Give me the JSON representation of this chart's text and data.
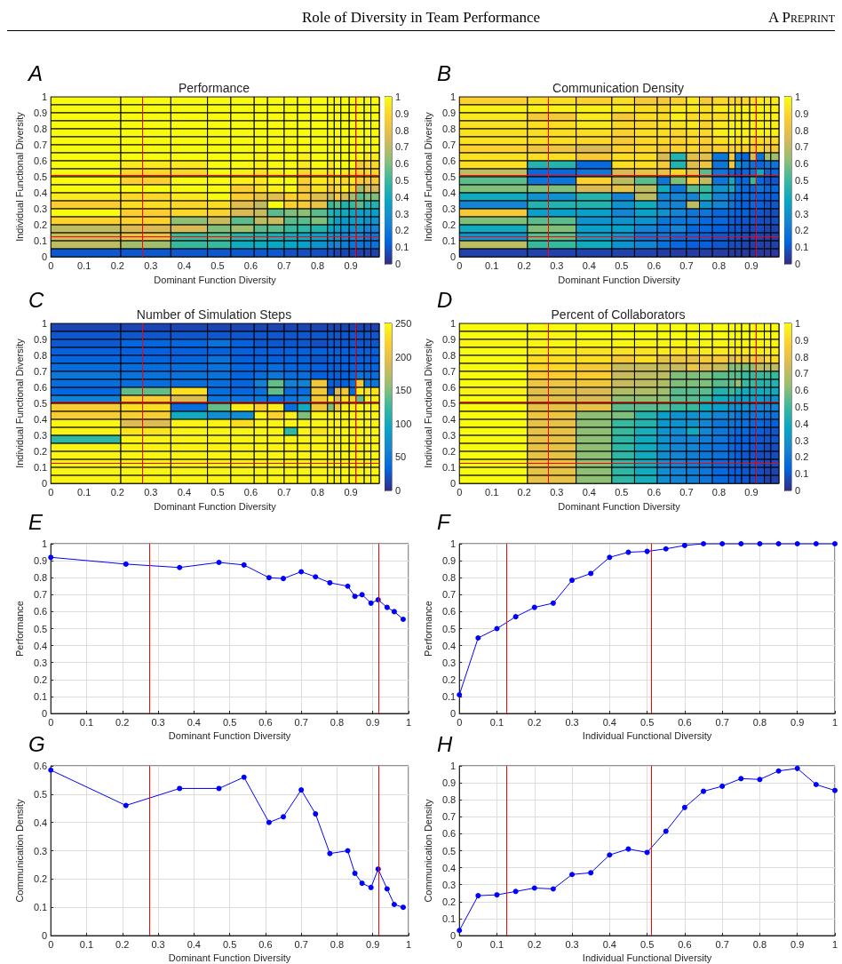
{
  "chart_data": [
    {
      "type": "heatmap",
      "title": "Performance",
      "xlabel": "Dominant Function Diversity",
      "ylabel": "Individual Functional Diversity",
      "annotations": [
        "Role of Diversity in Team Performance",
        "A Preprint",
        "A"
      ],
      "x": [
        0.105,
        0.285,
        0.415,
        0.505,
        0.575,
        0.63,
        0.675,
        0.72,
        0.76,
        0.805,
        0.84,
        0.86,
        0.8825,
        0.905,
        0.9275,
        0.95,
        0.9725
      ],
      "xlim": [
        0,
        0.985
      ],
      "xticks": [
        0,
        0.1,
        0.2,
        0.3,
        0.4,
        0.5,
        0.6,
        0.7,
        0.8,
        0.9
      ],
      "ylim": [
        0,
        1
      ],
      "yticks": [
        0,
        0.1,
        0.2,
        0.3,
        0.4,
        0.5,
        0.6,
        0.7,
        0.8,
        0.9,
        1
      ],
      "clim": [
        0,
        1
      ],
      "cticks": [
        0,
        0.1,
        0.2,
        0.3,
        0.4,
        0.5,
        0.6,
        0.7,
        0.8,
        0.9,
        1
      ],
      "ref_lines": [
        {
          "axis": "x",
          "value": 0.275,
          "color": "#ff0000"
        },
        {
          "axis": "x",
          "value": 0.915,
          "color": "#ff0000"
        },
        {
          "axis": "y",
          "value": 0.125,
          "color": "#ff0000"
        },
        {
          "axis": "y",
          "value": 0.51,
          "color": "#ff0000"
        }
      ],
      "cells": [
        [
          1,
          1,
          1,
          1,
          1,
          1,
          1,
          1,
          1,
          1,
          1,
          1,
          1,
          1,
          1,
          1,
          1
        ],
        [
          1,
          1,
          1,
          1,
          1,
          1,
          1,
          1,
          1,
          1,
          1,
          1,
          1,
          1,
          1,
          1,
          1
        ],
        [
          1,
          1,
          1,
          1,
          1,
          1,
          1,
          1,
          1,
          1,
          1,
          1,
          1,
          1,
          1,
          1,
          1
        ],
        [
          1,
          1,
          1,
          1,
          1,
          1,
          1,
          1,
          1,
          1,
          1,
          1,
          1,
          1,
          1,
          1,
          1
        ],
        [
          1,
          1,
          1,
          1,
          1,
          1,
          1,
          1,
          1,
          1,
          1,
          1,
          1,
          1,
          1,
          1,
          1
        ],
        [
          1,
          1,
          1,
          1,
          1,
          1,
          1,
          1,
          1,
          1,
          1,
          1,
          1,
          1,
          1,
          1,
          1
        ],
        [
          1,
          1,
          1,
          1,
          1,
          1,
          1,
          1,
          1,
          1,
          1,
          1,
          1,
          1,
          1,
          1,
          1
        ],
        [
          1,
          1,
          1,
          1,
          1,
          0.97,
          1,
          1,
          0.97,
          1,
          1,
          1,
          1,
          1,
          1,
          0.95,
          0.95
        ],
        [
          1,
          0.95,
          0.95,
          1,
          1,
          0.97,
          1,
          1,
          0.95,
          1,
          0.95,
          1,
          1,
          1,
          0.85,
          0.9,
          0.9
        ],
        [
          1,
          0.9,
          0.9,
          1,
          0.97,
          0.93,
          0.97,
          1,
          0.9,
          0.95,
          0.92,
          1,
          0.95,
          0.93,
          0.88,
          0.9,
          0.9
        ],
        [
          1,
          0.88,
          1,
          1,
          0.97,
          0.95,
          1,
          1,
          0.88,
          0.95,
          0.92,
          0.95,
          0.9,
          0.95,
          0.85,
          0.85,
          0.85
        ],
        [
          1,
          1,
          1,
          1,
          0.87,
          0.93,
          0.97,
          1,
          0.85,
          0.93,
          0.85,
          0.9,
          0.95,
          0.88,
          0.65,
          0.75,
          0.75
        ],
        [
          0.95,
          0.9,
          0.95,
          1,
          0.87,
          0.8,
          0.78,
          0.88,
          0.85,
          0.78,
          0.72,
          0.85,
          0.75,
          0.65,
          0.55,
          0.6,
          0.6
        ],
        [
          0.87,
          0.92,
          0.9,
          0.92,
          0.77,
          0.7,
          1,
          0.88,
          0.85,
          0.8,
          0.5,
          0.55,
          0.45,
          0.5,
          0.55,
          0.45,
          0.45
        ],
        [
          1,
          0.87,
          0.9,
          0.88,
          0.75,
          0.72,
          0.55,
          0.6,
          0.62,
          0.55,
          0.45,
          0.4,
          0.4,
          0.38,
          0.35,
          0.35,
          0.35
        ],
        [
          0.88,
          0.88,
          0.62,
          0.72,
          0.55,
          0.7,
          0.72,
          0.55,
          0.55,
          0.6,
          0.45,
          0.35,
          0.32,
          0.35,
          0.35,
          0.3,
          0.3
        ],
        [
          0.7,
          0.75,
          0.75,
          0.6,
          0.65,
          0.55,
          0.55,
          0.5,
          0.48,
          0.45,
          0.38,
          0.35,
          0.3,
          0.3,
          0.3,
          0.25,
          0.25
        ],
        [
          0.72,
          0.8,
          0.5,
          0.55,
          0.45,
          0.45,
          0.42,
          0.4,
          0.38,
          0.35,
          0.3,
          0.3,
          0.25,
          0.25,
          0.25,
          0.2,
          0.2
        ],
        [
          0.7,
          0.65,
          0.5,
          0.5,
          0.4,
          0.4,
          0.38,
          0.38,
          0.35,
          0.3,
          0.25,
          0.25,
          0.22,
          0.2,
          0.2,
          0.18,
          0.18
        ],
        [
          0.1,
          0.1,
          0.1,
          0.1,
          0.1,
          0.1,
          0.1,
          0.08,
          0.08,
          0.08,
          0.08,
          0.06,
          0.06,
          0.06,
          0.05,
          0.05,
          0.05
        ]
      ]
    },
    {
      "type": "heatmap",
      "title": "Communication Density",
      "xlabel": "Dominant Function Diversity",
      "ylabel": "Individual Functional Diversity",
      "annotations": [
        "B"
      ],
      "x": [
        0.105,
        0.285,
        0.415,
        0.505,
        0.575,
        0.63,
        0.675,
        0.72,
        0.76,
        0.805,
        0.84,
        0.86,
        0.8825,
        0.905,
        0.9275,
        0.95,
        0.9725
      ],
      "xlim": [
        0,
        0.985
      ],
      "xticks": [
        0,
        0.1,
        0.2,
        0.3,
        0.4,
        0.5,
        0.6,
        0.7,
        0.8,
        0.9
      ],
      "ylim": [
        0,
        1
      ],
      "yticks": [
        0,
        0.1,
        0.2,
        0.3,
        0.4,
        0.5,
        0.6,
        0.7,
        0.8,
        0.9,
        1
      ],
      "clim": [
        0,
        1
      ],
      "cticks": [
        0,
        0.1,
        0.2,
        0.3,
        0.4,
        0.5,
        0.6,
        0.7,
        0.8,
        0.9,
        1
      ],
      "ref_lines": [
        {
          "axis": "x",
          "value": 0.275,
          "color": "#ff0000"
        },
        {
          "axis": "x",
          "value": 0.915,
          "color": "#ff0000"
        },
        {
          "axis": "y",
          "value": 0.125,
          "color": "#ff0000"
        },
        {
          "axis": "y",
          "value": 0.51,
          "color": "#ff0000"
        }
      ],
      "cells": [
        [
          0.88,
          0.92,
          0.88,
          0.92,
          0.85,
          0.85,
          0.88,
          0.95,
          0.85,
          0.9,
          0.9,
          0.88,
          0.9,
          0.92,
          0.95,
          0.95,
          0.95
        ],
        [
          0.97,
          0.97,
          0.97,
          0.95,
          0.92,
          0.9,
          0.95,
          0.95,
          0.92,
          0.95,
          0.95,
          0.97,
          0.97,
          0.97,
          0.97,
          0.97,
          0.97
        ],
        [
          0.95,
          0.85,
          0.95,
          0.85,
          0.92,
          0.92,
          0.97,
          0.92,
          0.92,
          0.92,
          0.95,
          0.95,
          0.97,
          0.97,
          0.97,
          0.97,
          0.97
        ],
        [
          0.93,
          0.92,
          0.95,
          0.9,
          0.9,
          0.92,
          0.93,
          0.95,
          0.88,
          0.95,
          0.97,
          0.97,
          0.97,
          0.97,
          0.97,
          0.97,
          0.97
        ],
        [
          0.93,
          0.92,
          0.92,
          0.88,
          0.92,
          0.92,
          0.9,
          0.92,
          0.9,
          0.97,
          1,
          0.97,
          0.97,
          0.97,
          0.97,
          0.97,
          0.97
        ],
        [
          0.93,
          0.92,
          0.9,
          0.85,
          0.9,
          0.9,
          0.88,
          0.9,
          0.87,
          0.92,
          0.95,
          0.92,
          0.95,
          0.9,
          0.9,
          0.9,
          0.9
        ],
        [
          0.88,
          0.82,
          0.75,
          0.88,
          0.9,
          0.85,
          0.88,
          0.9,
          0.85,
          0.87,
          0.88,
          0.88,
          0.88,
          0.85,
          0.88,
          0.85,
          0.85
        ],
        [
          0.93,
          0.92,
          0.85,
          0.92,
          0.92,
          0.75,
          0.45,
          0.78,
          0.78,
          0.2,
          0.85,
          0.2,
          0.15,
          0.75,
          0.18,
          0.65,
          0.65
        ],
        [
          0.92,
          0.45,
          0.15,
          0.92,
          0.92,
          0.85,
          0.45,
          0.78,
          0.82,
          0.2,
          0.85,
          0.3,
          0.2,
          0.18,
          0.15,
          0.2,
          0.2
        ],
        [
          0.7,
          0.15,
          0.2,
          0.75,
          0.8,
          0.8,
          0.9,
          0.8,
          0.55,
          0.2,
          0.15,
          0.1,
          0.15,
          0.2,
          0.4,
          0.15,
          0.15
        ],
        [
          0.55,
          0.2,
          0.88,
          0.7,
          0.55,
          0.2,
          0.6,
          0.85,
          0.7,
          0.2,
          0.4,
          0.15,
          0.15,
          0.5,
          0.15,
          0.1,
          0.1
        ],
        [
          0.6,
          0.6,
          0.75,
          0.8,
          0.7,
          0.4,
          0.2,
          0.55,
          0.5,
          0.3,
          0.4,
          0.2,
          0.15,
          0.15,
          0.2,
          0.15,
          0.15
        ],
        [
          0.4,
          0.3,
          0.45,
          0.25,
          0.7,
          0.25,
          0.25,
          0.25,
          0.45,
          0.25,
          0.2,
          0.15,
          0.15,
          0.15,
          0.12,
          0.12,
          0.12
        ],
        [
          0.25,
          0.45,
          0.45,
          0.3,
          0.4,
          0.25,
          0.25,
          0.7,
          0.3,
          0.25,
          0.2,
          0.15,
          0.12,
          0.15,
          0.12,
          0.1,
          0.1
        ],
        [
          0.85,
          0.35,
          0.35,
          0.25,
          0.35,
          0.3,
          0.25,
          0.2,
          0.2,
          0.15,
          0.15,
          0.12,
          0.12,
          0.1,
          0.1,
          0.08,
          0.08
        ],
        [
          0.6,
          0.55,
          0.3,
          0.3,
          0.3,
          0.2,
          0.2,
          0.2,
          0.15,
          0.15,
          0.12,
          0.1,
          0.1,
          0.1,
          0.08,
          0.08,
          0.08
        ],
        [
          0.4,
          0.6,
          0.35,
          0.35,
          0.25,
          0.2,
          0.25,
          0.15,
          0.15,
          0.12,
          0.1,
          0.1,
          0.08,
          0.08,
          0.08,
          0.06,
          0.06
        ],
        [
          0.3,
          0.55,
          0.35,
          0.3,
          0.2,
          0.2,
          0.15,
          0.15,
          0.12,
          0.1,
          0.1,
          0.08,
          0.08,
          0.06,
          0.06,
          0.05,
          0.05
        ],
        [
          0.7,
          0.5,
          0.4,
          0.3,
          0.25,
          0.18,
          0.15,
          0.12,
          0.12,
          0.1,
          0.08,
          0.08,
          0.06,
          0.05,
          0.05,
          0.05,
          0.05
        ],
        [
          0.05,
          0.05,
          0.05,
          0.05,
          0.05,
          0.04,
          0.04,
          0.04,
          0.04,
          0.04,
          0.03,
          0.03,
          0.03,
          0.03,
          0.03,
          0.03,
          0.03
        ]
      ]
    },
    {
      "type": "heatmap",
      "title": "Number of Simulation Steps",
      "xlabel": "Dominant Function Diversity",
      "ylabel": "Individual Functional Diversity",
      "annotations": [
        "C"
      ],
      "x": [
        0.105,
        0.285,
        0.415,
        0.505,
        0.575,
        0.63,
        0.675,
        0.72,
        0.76,
        0.805,
        0.84,
        0.86,
        0.8825,
        0.905,
        0.9275,
        0.95,
        0.9725
      ],
      "xlim": [
        0,
        0.985
      ],
      "xticks": [
        0,
        0.1,
        0.2,
        0.3,
        0.4,
        0.5,
        0.6,
        0.7,
        0.8,
        0.9
      ],
      "ylim": [
        0,
        1
      ],
      "yticks": [
        0,
        0.1,
        0.2,
        0.3,
        0.4,
        0.5,
        0.6,
        0.7,
        0.8,
        0.9,
        1
      ],
      "clim": [
        0,
        250
      ],
      "cticks": [
        0,
        50,
        100,
        150,
        200,
        250
      ],
      "ref_lines": [
        {
          "axis": "x",
          "value": 0.275,
          "color": "#ff0000"
        },
        {
          "axis": "x",
          "value": 0.915,
          "color": "#ff0000"
        },
        {
          "axis": "y",
          "value": 0.125,
          "color": "#ff0000"
        },
        {
          "axis": "y",
          "value": 0.51,
          "color": "#ff0000"
        }
      ],
      "cells": [
        [
          15,
          15,
          15,
          15,
          15,
          15,
          15,
          15,
          15,
          15,
          15,
          15,
          15,
          15,
          15,
          15,
          15
        ],
        [
          25,
          25,
          25,
          25,
          25,
          25,
          25,
          25,
          25,
          25,
          25,
          25,
          25,
          25,
          25,
          25,
          25
        ],
        [
          25,
          35,
          35,
          45,
          30,
          25,
          25,
          25,
          25,
          20,
          25,
          25,
          25,
          25,
          25,
          25,
          25
        ],
        [
          30,
          30,
          30,
          30,
          30,
          30,
          30,
          30,
          30,
          30,
          30,
          30,
          30,
          30,
          30,
          30,
          30
        ],
        [
          35,
          35,
          35,
          45,
          30,
          30,
          30,
          30,
          30,
          25,
          30,
          30,
          30,
          30,
          30,
          30,
          30
        ],
        [
          40,
          40,
          40,
          45,
          35,
          35,
          40,
          35,
          35,
          30,
          30,
          30,
          30,
          30,
          35,
          35,
          35
        ],
        [
          50,
          45,
          45,
          45,
          35,
          40,
          50,
          40,
          40,
          30,
          30,
          30,
          30,
          35,
          50,
          40,
          40
        ],
        [
          40,
          40,
          40,
          40,
          35,
          60,
          140,
          60,
          60,
          210,
          30,
          30,
          30,
          45,
          210,
          50,
          50
        ],
        [
          35,
          140,
          230,
          40,
          35,
          45,
          140,
          40,
          40,
          210,
          25,
          190,
          210,
          40,
          240,
          235,
          235
        ],
        [
          60,
          215,
          190,
          50,
          50,
          50,
          40,
          50,
          60,
          210,
          240,
          190,
          230,
          215,
          140,
          240,
          240
        ],
        [
          215,
          230,
          40,
          140,
          240,
          220,
          240,
          40,
          100,
          210,
          150,
          210,
          240,
          240,
          250,
          245,
          245
        ],
        [
          215,
          215,
          100,
          70,
          70,
          245,
          220,
          240,
          150,
          245,
          245,
          245,
          245,
          245,
          245,
          245,
          245
        ],
        [
          245,
          190,
          245,
          245,
          230,
          245,
          245,
          245,
          245,
          245,
          245,
          245,
          245,
          245,
          245,
          245,
          245
        ],
        [
          245,
          235,
          245,
          245,
          245,
          245,
          245,
          120,
          245,
          235,
          245,
          245,
          245,
          245,
          245,
          245,
          245
        ],
        [
          120,
          245,
          245,
          245,
          245,
          245,
          245,
          245,
          245,
          245,
          245,
          245,
          245,
          245,
          245,
          245,
          245
        ],
        [
          245,
          245,
          245,
          245,
          245,
          245,
          245,
          245,
          245,
          245,
          245,
          245,
          245,
          245,
          245,
          245,
          245
        ],
        [
          245,
          245,
          245,
          245,
          245,
          245,
          245,
          245,
          245,
          245,
          245,
          245,
          245,
          245,
          245,
          245,
          245
        ],
        [
          245,
          245,
          245,
          245,
          245,
          245,
          245,
          245,
          245,
          245,
          245,
          245,
          245,
          245,
          245,
          245,
          245
        ],
        [
          245,
          245,
          245,
          245,
          245,
          245,
          245,
          245,
          245,
          245,
          245,
          245,
          245,
          245,
          245,
          245,
          245
        ],
        [
          245,
          245,
          245,
          245,
          245,
          245,
          245,
          245,
          245,
          245,
          245,
          245,
          245,
          245,
          245,
          245,
          245
        ]
      ]
    },
    {
      "type": "heatmap",
      "title": "Percent of Collaborators",
      "xlabel": "Dominant Function Diversity",
      "ylabel": "Individual Functional Diversity",
      "annotations": [
        "D"
      ],
      "x": [
        0.105,
        0.285,
        0.415,
        0.505,
        0.575,
        0.63,
        0.675,
        0.72,
        0.76,
        0.805,
        0.84,
        0.86,
        0.8825,
        0.905,
        0.9275,
        0.95,
        0.9725
      ],
      "xlim": [
        0,
        0.985
      ],
      "xticks": [
        0,
        0.1,
        0.2,
        0.3,
        0.4,
        0.5,
        0.6,
        0.7,
        0.8,
        0.9
      ],
      "ylim": [
        0,
        1
      ],
      "yticks": [
        0,
        0.1,
        0.2,
        0.3,
        0.4,
        0.5,
        0.6,
        0.7,
        0.8,
        0.9,
        1
      ],
      "clim": [
        0,
        1
      ],
      "cticks": [
        0,
        0.1,
        0.2,
        0.3,
        0.4,
        0.5,
        0.6,
        0.7,
        0.8,
        0.9,
        1
      ],
      "ref_lines": [
        {
          "axis": "x",
          "value": 0.275,
          "color": "#ff0000"
        },
        {
          "axis": "x",
          "value": 0.915,
          "color": "#ff0000"
        },
        {
          "axis": "y",
          "value": 0.125,
          "color": "#ff0000"
        },
        {
          "axis": "y",
          "value": 0.51,
          "color": "#ff0000"
        }
      ],
      "cells": [
        [
          1,
          1,
          1,
          1,
          1,
          1,
          1,
          1,
          1,
          1,
          1,
          1,
          1,
          1,
          1,
          1,
          1
        ],
        [
          1,
          0.98,
          1,
          1,
          1,
          1,
          1,
          1,
          1,
          1,
          1,
          1,
          1,
          1,
          1,
          1,
          1
        ],
        [
          0.98,
          0.98,
          0.98,
          0.98,
          0.98,
          0.98,
          0.98,
          0.98,
          0.98,
          0.98,
          0.98,
          0.98,
          0.98,
          0.98,
          0.98,
          0.98,
          0.98
        ],
        [
          1,
          0.95,
          0.93,
          0.93,
          0.93,
          0.95,
          0.93,
          0.93,
          0.95,
          0.95,
          0.95,
          0.95,
          0.95,
          0.95,
          0.95,
          0.95,
          0.95
        ],
        [
          1,
          0.92,
          0.92,
          0.85,
          0.92,
          0.8,
          0.82,
          0.8,
          0.85,
          0.85,
          0.78,
          0.85,
          0.82,
          0.85,
          0.8,
          0.9,
          0.9
        ],
        [
          1,
          0.9,
          0.85,
          0.72,
          0.72,
          0.72,
          0.72,
          0.82,
          0.75,
          0.72,
          0.6,
          0.62,
          0.6,
          0.62,
          0.7,
          0.7,
          0.7
        ],
        [
          1,
          0.87,
          0.87,
          0.72,
          0.7,
          0.7,
          0.6,
          0.6,
          0.6,
          0.55,
          0.55,
          0.55,
          0.5,
          0.5,
          0.5,
          0.5,
          0.5
        ],
        [
          1,
          0.82,
          0.83,
          0.72,
          0.7,
          0.68,
          0.6,
          0.6,
          0.6,
          0.55,
          0.55,
          0.65,
          0.5,
          0.5,
          0.45,
          0.45,
          0.45
        ],
        [
          0.97,
          0.78,
          0.75,
          0.68,
          0.68,
          0.65,
          0.55,
          0.55,
          0.55,
          0.45,
          0.5,
          0.45,
          0.4,
          0.4,
          0.4,
          0.4,
          0.4
        ],
        [
          1,
          0.78,
          0.75,
          0.62,
          0.62,
          0.62,
          0.55,
          0.55,
          0.5,
          0.4,
          0.4,
          0.35,
          0.35,
          0.35,
          0.35,
          0.3,
          0.3
        ],
        [
          1,
          0.8,
          0.8,
          0.55,
          0.55,
          0.55,
          0.5,
          0.5,
          0.4,
          0.35,
          0.3,
          0.3,
          0.3,
          0.25,
          0.25,
          0.25,
          0.25
        ],
        [
          1,
          0.82,
          0.62,
          0.6,
          0.45,
          0.35,
          0.3,
          0.3,
          0.3,
          0.25,
          0.25,
          0.2,
          0.2,
          0.2,
          0.2,
          0.18,
          0.18
        ],
        [
          1,
          0.8,
          0.62,
          0.5,
          0.45,
          0.32,
          0.3,
          0.3,
          0.25,
          0.2,
          0.2,
          0.18,
          0.18,
          0.15,
          0.15,
          0.12,
          0.12
        ],
        [
          1,
          0.8,
          0.62,
          0.5,
          0.42,
          0.3,
          0.28,
          0.4,
          0.25,
          0.2,
          0.18,
          0.15,
          0.15,
          0.12,
          0.12,
          0.1,
          0.1
        ],
        [
          1,
          0.8,
          0.62,
          0.48,
          0.4,
          0.3,
          0.25,
          0.25,
          0.22,
          0.2,
          0.15,
          0.12,
          0.12,
          0.12,
          0.1,
          0.1,
          0.1
        ],
        [
          1,
          0.8,
          0.62,
          0.48,
          0.4,
          0.3,
          0.25,
          0.25,
          0.2,
          0.18,
          0.15,
          0.12,
          0.12,
          0.1,
          0.1,
          0.08,
          0.08
        ],
        [
          1,
          0.8,
          0.62,
          0.48,
          0.4,
          0.28,
          0.25,
          0.22,
          0.2,
          0.18,
          0.15,
          0.12,
          0.1,
          0.1,
          0.08,
          0.08,
          0.08
        ],
        [
          1,
          0.8,
          0.62,
          0.48,
          0.4,
          0.28,
          0.25,
          0.22,
          0.2,
          0.15,
          0.15,
          0.12,
          0.1,
          0.1,
          0.08,
          0.08,
          0.08
        ],
        [
          1,
          0.8,
          0.62,
          0.48,
          0.4,
          0.28,
          0.25,
          0.22,
          0.2,
          0.15,
          0.12,
          0.12,
          0.1,
          0.1,
          0.08,
          0.06,
          0.06
        ],
        [
          1,
          0.8,
          0.62,
          0.48,
          0.42,
          0.28,
          0.25,
          0.22,
          0.2,
          0.15,
          0.12,
          0.1,
          0.1,
          0.08,
          0.08,
          0.05,
          0.05
        ]
      ]
    },
    {
      "type": "line",
      "xlabel": "Dominant Function Diversity",
      "ylabel": "Performance",
      "annotations": [
        "E"
      ],
      "grid": true,
      "marker": "circle",
      "xlim": [
        0,
        1
      ],
      "xticks": [
        0,
        0.1,
        0.2,
        0.3,
        0.4,
        0.5,
        0.6,
        0.7,
        0.8,
        0.9,
        1
      ],
      "ylim": [
        0,
        1
      ],
      "yticks": [
        0,
        0.1,
        0.2,
        0.3,
        0.4,
        0.5,
        0.6,
        0.7,
        0.8,
        0.9,
        1
      ],
      "ref_lines": [
        {
          "axis": "x",
          "value": 0.275,
          "color": "#ff0000"
        },
        {
          "axis": "x",
          "value": 0.915,
          "color": "#ff0000"
        }
      ],
      "series": [
        {
          "color": "#0000ff",
          "x": [
            0,
            0.21,
            0.36,
            0.47,
            0.54,
            0.61,
            0.65,
            0.7,
            0.74,
            0.78,
            0.83,
            0.85,
            0.87,
            0.895,
            0.915,
            0.94,
            0.96,
            0.985
          ],
          "values": [
            0.92,
            0.88,
            0.86,
            0.89,
            0.875,
            0.8,
            0.795,
            0.835,
            0.805,
            0.77,
            0.75,
            0.69,
            0.7,
            0.65,
            0.67,
            0.625,
            0.6,
            0.555
          ]
        }
      ]
    },
    {
      "type": "line",
      "xlabel": "Individual Functional Diversity",
      "ylabel": "Performance",
      "annotations": [
        "F"
      ],
      "grid": true,
      "marker": "circle",
      "xlim": [
        0,
        1
      ],
      "xticks": [
        0,
        0.1,
        0.2,
        0.3,
        0.4,
        0.5,
        0.6,
        0.7,
        0.8,
        0.9,
        1
      ],
      "ylim": [
        0,
        1
      ],
      "yticks": [
        0,
        0.1,
        0.2,
        0.3,
        0.4,
        0.5,
        0.6,
        0.7,
        0.8,
        0.9,
        1
      ],
      "ref_lines": [
        {
          "axis": "x",
          "value": 0.125,
          "color": "#ff0000"
        },
        {
          "axis": "x",
          "value": 0.51,
          "color": "#ff0000"
        }
      ],
      "series": [
        {
          "color": "#0000ff",
          "x": [
            0,
            0.05,
            0.1,
            0.15,
            0.2,
            0.25,
            0.3,
            0.35,
            0.4,
            0.45,
            0.5,
            0.55,
            0.6,
            0.65,
            0.7,
            0.75,
            0.8,
            0.85,
            0.9,
            0.95,
            1
          ],
          "values": [
            0.11,
            0.445,
            0.5,
            0.57,
            0.625,
            0.65,
            0.785,
            0.825,
            0.92,
            0.95,
            0.955,
            0.97,
            0.99,
            1,
            1,
            1,
            1,
            1,
            1,
            1,
            1
          ]
        }
      ]
    },
    {
      "type": "line",
      "xlabel": "Dominant Function Diversity",
      "ylabel": "Communication Density",
      "annotations": [
        "G"
      ],
      "grid": true,
      "marker": "circle",
      "xlim": [
        0,
        1
      ],
      "xticks": [
        0,
        0.1,
        0.2,
        0.3,
        0.4,
        0.5,
        0.6,
        0.7,
        0.8,
        0.9,
        1
      ],
      "ylim": [
        0,
        0.6
      ],
      "yticks": [
        0,
        0.1,
        0.2,
        0.3,
        0.4,
        0.5,
        0.6
      ],
      "ref_lines": [
        {
          "axis": "x",
          "value": 0.275,
          "color": "#ff0000"
        },
        {
          "axis": "x",
          "value": 0.915,
          "color": "#ff0000"
        }
      ],
      "series": [
        {
          "color": "#0000ff",
          "x": [
            0,
            0.21,
            0.36,
            0.47,
            0.54,
            0.61,
            0.65,
            0.7,
            0.74,
            0.78,
            0.83,
            0.85,
            0.87,
            0.895,
            0.915,
            0.94,
            0.96,
            0.985
          ],
          "values": [
            0.585,
            0.46,
            0.52,
            0.52,
            0.56,
            0.4,
            0.42,
            0.515,
            0.43,
            0.29,
            0.3,
            0.22,
            0.185,
            0.17,
            0.235,
            0.165,
            0.11,
            0.1
          ]
        }
      ]
    },
    {
      "type": "line",
      "xlabel": "Individual Functional Diversity",
      "ylabel": "Communication Density",
      "annotations": [
        "H"
      ],
      "grid": true,
      "marker": "circle",
      "xlim": [
        0,
        1
      ],
      "xticks": [
        0,
        0.1,
        0.2,
        0.3,
        0.4,
        0.5,
        0.6,
        0.7,
        0.8,
        0.9,
        1
      ],
      "ylim": [
        0,
        1
      ],
      "yticks": [
        0,
        0.1,
        0.2,
        0.3,
        0.4,
        0.5,
        0.6,
        0.7,
        0.8,
        0.9,
        1
      ],
      "ref_lines": [
        {
          "axis": "x",
          "value": 0.125,
          "color": "#ff0000"
        },
        {
          "axis": "x",
          "value": 0.51,
          "color": "#ff0000"
        }
      ],
      "series": [
        {
          "color": "#0000ff",
          "x": [
            0,
            0.05,
            0.1,
            0.15,
            0.2,
            0.25,
            0.3,
            0.35,
            0.4,
            0.45,
            0.5,
            0.55,
            0.6,
            0.65,
            0.7,
            0.75,
            0.8,
            0.85,
            0.9,
            0.95,
            1
          ],
          "values": [
            0.03,
            0.235,
            0.24,
            0.26,
            0.28,
            0.275,
            0.36,
            0.37,
            0.475,
            0.51,
            0.49,
            0.615,
            0.755,
            0.85,
            0.88,
            0.925,
            0.92,
            0.97,
            0.985,
            0.89,
            0.855
          ]
        }
      ]
    }
  ]
}
